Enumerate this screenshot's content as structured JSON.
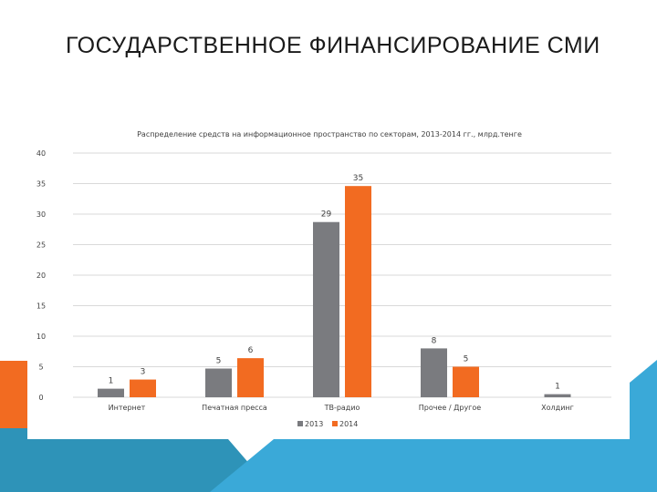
{
  "slide": {
    "title": "ГОСУДАРСТВЕННОЕ ФИНАНСИРОВАНИЕ СМИ"
  },
  "colors": {
    "series_2013": "#7a7b7f",
    "series_2014": "#f26b21",
    "accent_orange": "#f26b21",
    "accent_teal": "#2e93b8",
    "accent_light_blue": "#3aa9d8",
    "gridline": "#d9d9d9",
    "text": "#404040"
  },
  "chart_data": {
    "type": "bar",
    "title": "Распределение средств на информационное пространство по секторам, 2013-2014 гг., млрд.тенге",
    "xlabel": "",
    "ylabel": "",
    "ylim": [
      0,
      40
    ],
    "yticks": [
      0,
      5,
      10,
      15,
      20,
      25,
      30,
      35,
      40
    ],
    "categories": [
      "Интернет",
      "Печатная пресса",
      "ТВ-радио",
      "Прочее / Другое",
      "Холдинг"
    ],
    "series": [
      {
        "name": "2013",
        "values": [
          1.4,
          4.7,
          28.7,
          8,
          0.5
        ],
        "labels": [
          "1",
          "5",
          "29",
          "8",
          ""
        ]
      },
      {
        "name": "2014",
        "values": [
          2.9,
          6.4,
          34.6,
          5,
          null
        ],
        "labels": [
          "3",
          "6",
          "35",
          "5",
          "1"
        ]
      }
    ],
    "grid": true,
    "legend": "bottom"
  }
}
